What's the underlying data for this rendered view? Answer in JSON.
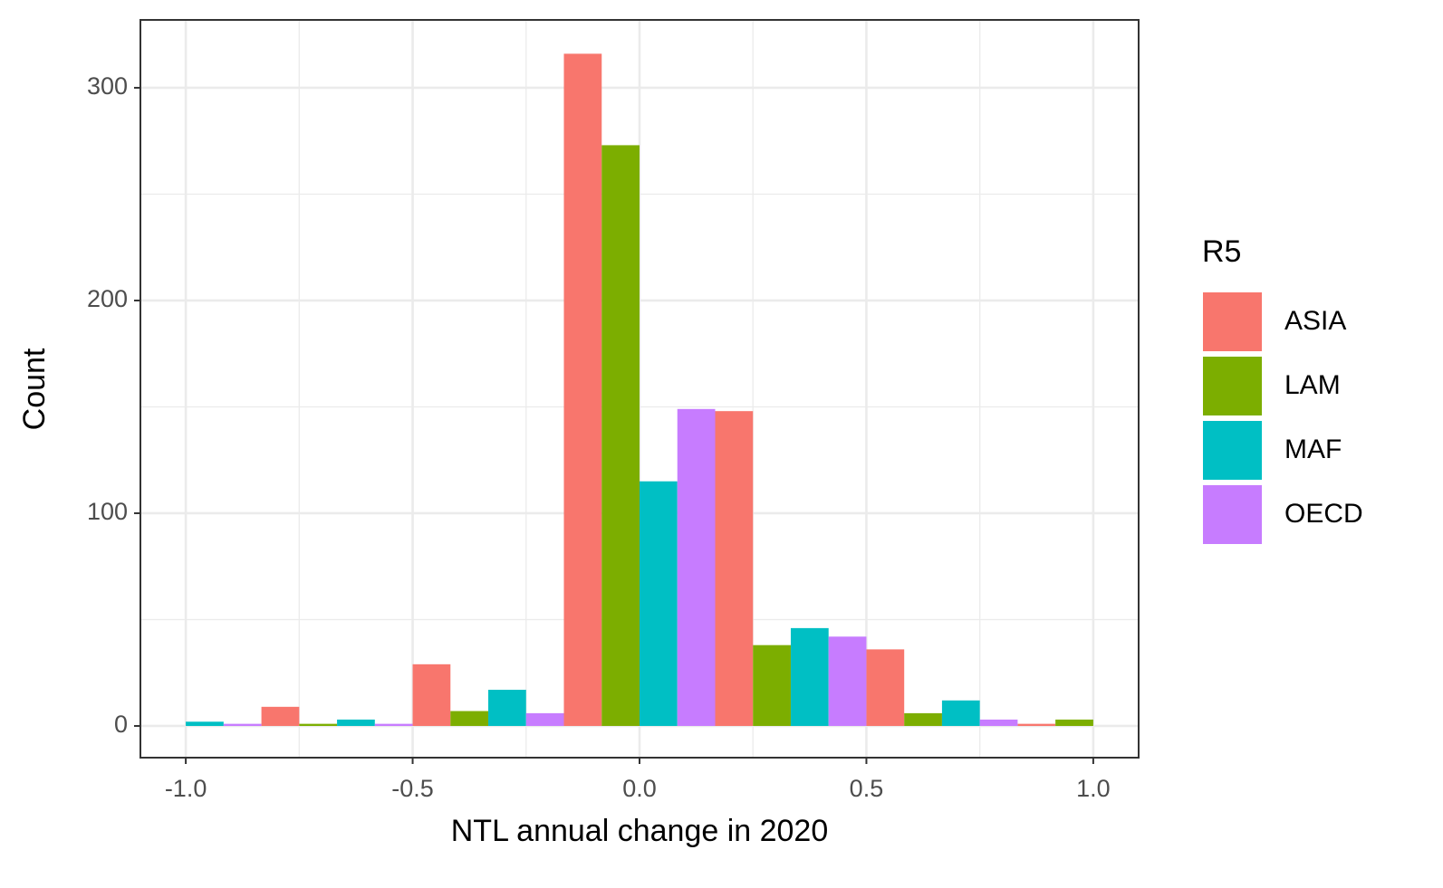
{
  "chart_data": {
    "type": "histogram",
    "x_label": "NTL annual change in 2020",
    "y_label": "Count",
    "legend_title": "R5",
    "legend_position": "right",
    "bins": [
      -1.1667,
      -0.8333,
      -0.5,
      -0.1667,
      0.1667,
      0.5,
      0.8333,
      1.1667
    ],
    "series": [
      {
        "name": "ASIA",
        "color": "#F8766D",
        "values": [
          0,
          9,
          29,
          316,
          148,
          36,
          1
        ]
      },
      {
        "name": "LAM",
        "color": "#7CAE00",
        "values": [
          0,
          1,
          7,
          273,
          38,
          6,
          3
        ]
      },
      {
        "name": "MAF",
        "color": "#00BFC4",
        "values": [
          2,
          3,
          17,
          115,
          46,
          12,
          0
        ]
      },
      {
        "name": "OECD",
        "color": "#C77CFF",
        "values": [
          1,
          1,
          6,
          149,
          42,
          3,
          0
        ]
      }
    ],
    "xlim": [
      -1.1,
      1.1
    ],
    "ylim": [
      -14.9,
      331.9
    ],
    "xticks": [
      {
        "value": -1,
        "label": "-1.0"
      },
      -0.5,
      {
        "value": 0,
        "label": "0.0"
      },
      0.5,
      {
        "value": 1,
        "label": "1.0"
      }
    ],
    "yticks": [
      0,
      100,
      200,
      300
    ],
    "xminor": [
      -0.75,
      -0.25,
      0.25,
      0.75
    ],
    "yminor": [
      50,
      150,
      250
    ],
    "grid": true
  }
}
